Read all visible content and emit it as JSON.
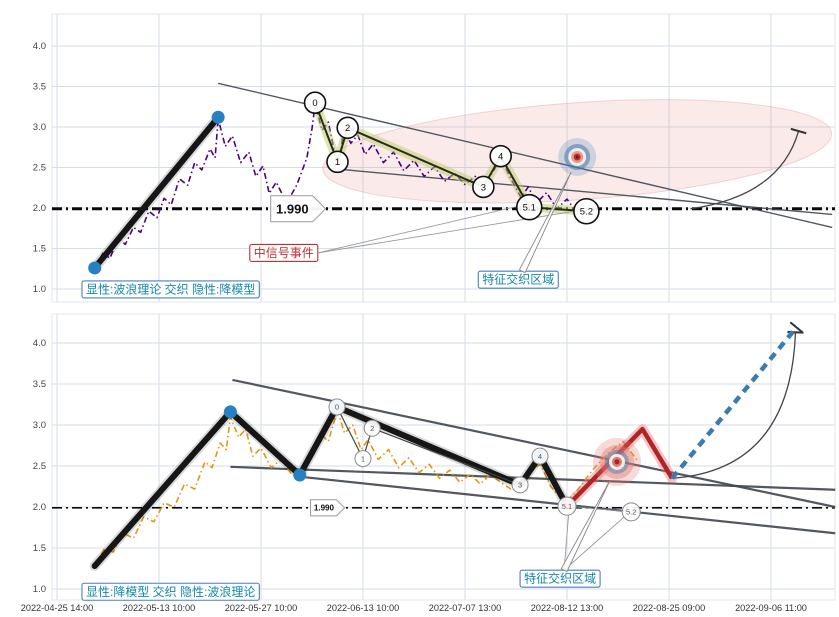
{
  "colors": {
    "grid": "#d6dee8",
    "frame": "#e2e7ee",
    "trend": "#41474e",
    "dot": "#2680c2",
    "band": "#b9cd67",
    "red": "#b02428",
    "red_glow": "rgba(224,112,112,0.4)",
    "projection": "#3a7cad",
    "ellipse_fill": "rgba(222,130,125,0.16)",
    "ellipse_stroke": "rgba(210,120,115,0.28)",
    "leader": "#999999",
    "caption_text": "#1587a8",
    "caption_border": "#4a7fc1",
    "red_label": "#c03030",
    "price_top": "#4b0082",
    "price_bottom": "#e69512"
  },
  "chart_data": {
    "type": "line",
    "x_tick_labels": [
      "2022-04-25 14:00",
      "2022-05-13 10:00",
      "2022-05-27 10:00",
      "2022-06-13 10:00",
      "2022-07-07 13:00",
      "2022-08-12 13:00",
      "2022-08-25 09:00",
      "2022-09-06 11:00"
    ],
    "y_tick_labels": [
      "1.0",
      "1.5",
      "2.0",
      "2.5",
      "3.0",
      "3.5",
      "4.0"
    ],
    "y_range": [
      0.85,
      4.45
    ],
    "grid": true,
    "threshold": {
      "value": 1.99,
      "label": "1.990"
    },
    "panels": [
      {
        "id": "wave-theory-panel",
        "caption": {
          "text": "显性:波浪理论 交织 隐性:降模型",
          "pos": [
            0.245,
            1.1
          ]
        },
        "price": {
          "color_key": "price_top",
          "points": [
            [
              0.37,
              1.26
            ],
            [
              0.45,
              1.44
            ],
            [
              0.52,
              1.38
            ],
            [
              0.6,
              1.63
            ],
            [
              0.67,
              1.55
            ],
            [
              0.75,
              1.76
            ],
            [
              0.82,
              1.7
            ],
            [
              0.9,
              1.96
            ],
            [
              0.98,
              1.88
            ],
            [
              1.05,
              2.12
            ],
            [
              1.12,
              2.04
            ],
            [
              1.2,
              2.36
            ],
            [
              1.28,
              2.28
            ],
            [
              1.35,
              2.56
            ],
            [
              1.42,
              2.47
            ],
            [
              1.5,
              2.73
            ],
            [
              1.55,
              2.62
            ],
            [
              1.58,
              3.1
            ],
            [
              1.65,
              2.76
            ],
            [
              1.72,
              2.89
            ],
            [
              1.8,
              2.56
            ],
            [
              1.88,
              2.69
            ],
            [
              1.95,
              2.39
            ],
            [
              2.02,
              2.52
            ],
            [
              2.08,
              2.18
            ],
            [
              2.15,
              2.32
            ],
            [
              2.25,
              2.06
            ],
            [
              2.35,
              2.28
            ],
            [
              2.45,
              2.62
            ],
            [
              2.5,
              2.98
            ],
            [
              2.53,
              3.28
            ],
            [
              2.6,
              2.96
            ],
            [
              2.66,
              3.06
            ],
            [
              2.72,
              2.7
            ],
            [
              2.77,
              2.58
            ],
            [
              2.81,
              2.97
            ],
            [
              2.88,
              2.8
            ],
            [
              2.95,
              2.9
            ],
            [
              3.02,
              2.66
            ],
            [
              3.1,
              2.79
            ],
            [
              3.2,
              2.56
            ],
            [
              3.3,
              2.69
            ],
            [
              3.4,
              2.46
            ],
            [
              3.5,
              2.59
            ],
            [
              3.6,
              2.39
            ],
            [
              3.7,
              2.51
            ],
            [
              3.8,
              2.33
            ],
            [
              3.9,
              2.43
            ],
            [
              4.0,
              2.29
            ],
            [
              4.1,
              2.39
            ],
            [
              4.18,
              2.27
            ],
            [
              4.28,
              2.46
            ],
            [
              4.35,
              2.62
            ],
            [
              4.45,
              2.36
            ],
            [
              4.55,
              2.13
            ],
            [
              4.62,
              2.26
            ],
            [
              4.7,
              2.06
            ],
            [
              4.8,
              2.19
            ],
            [
              4.9,
              1.99
            ],
            [
              5.0,
              2.11
            ],
            [
              5.08,
              1.97
            ],
            [
              5.17,
              1.95
            ]
          ]
        },
        "impulse": {
          "points": [
            [
              0.37,
              1.26
            ],
            [
              1.58,
              3.12
            ]
          ],
          "dots": [
            [
              0.37,
              1.26
            ],
            [
              1.58,
              3.12
            ]
          ]
        },
        "wave": {
          "markers": [
            {
              "label": "0",
              "p": [
                2.53,
                3.3
              ]
            },
            {
              "label": "1",
              "p": [
                2.75,
                2.57
              ]
            },
            {
              "label": "2",
              "p": [
                2.85,
                2.99
              ]
            },
            {
              "label": "3",
              "p": [
                4.18,
                2.26
              ]
            },
            {
              "label": "4",
              "p": [
                4.35,
                2.64
              ]
            },
            {
              "label": "5.1",
              "p": [
                4.63,
                2.01
              ]
            },
            {
              "label": "5.2",
              "p": [
                5.19,
                1.96
              ]
            }
          ],
          "paths": [
            {
              "labels": [
                "0",
                "1",
                "2",
                "3",
                "4",
                "5.1",
                "5.2"
              ],
              "w": 2,
              "color": "#2a2a18",
              "band": true
            }
          ]
        },
        "trendlines": [
          [
            [
              1.58,
              3.54
            ],
            [
              7.6,
              1.76
            ]
          ],
          [
            [
              2.67,
              2.49
            ],
            [
              7.6,
              1.92
            ]
          ]
        ],
        "ellipse": {
          "c": [
            5.1,
            2.7
          ],
          "rx": 2.5,
          "ry": 0.6,
          "rot": -4
        },
        "bullseye": {
          "p": [
            5.1,
            2.63
          ],
          "style": "blue"
        },
        "curve": {
          "from": [
            6.21,
            1.99
          ],
          "ctrl": [
            7.09,
            2.15
          ],
          "to": [
            7.27,
            2.95
          ]
        },
        "threshold_arrow": {
          "pos": [
            2.36
          ],
          "scale": 1
        },
        "annotations": [
          {
            "text": "中信号事件",
            "type": "red",
            "pos": [
              1.89,
              1.55
            ],
            "leaders": [
              [
                4.58,
                2.04
              ],
              [
                5.12,
                1.97
              ]
            ]
          },
          {
            "text": "特征交织区域",
            "type": "teal",
            "pos": [
              4.13,
              1.22
            ],
            "needle": [
              5.04,
              2.44
            ]
          }
        ]
      },
      {
        "id": "model-panel",
        "caption": {
          "text": "显性:降模型 交织 隐性:波浪理论",
          "pos": [
            0.245,
            1.07
          ]
        },
        "price": {
          "color_key": "price_bottom",
          "points": [
            [
              0.37,
              1.28
            ],
            [
              0.47,
              1.5
            ],
            [
              0.55,
              1.45
            ],
            [
              0.65,
              1.68
            ],
            [
              0.75,
              1.62
            ],
            [
              0.85,
              1.88
            ],
            [
              0.95,
              1.82
            ],
            [
              1.05,
              2.05
            ],
            [
              1.15,
              2.0
            ],
            [
              1.25,
              2.28
            ],
            [
              1.35,
              2.22
            ],
            [
              1.45,
              2.55
            ],
            [
              1.52,
              2.48
            ],
            [
              1.6,
              2.78
            ],
            [
              1.66,
              2.7
            ],
            [
              1.7,
              3.1
            ],
            [
              1.78,
              2.85
            ],
            [
              1.85,
              2.95
            ],
            [
              1.92,
              2.62
            ],
            [
              2.0,
              2.72
            ],
            [
              2.1,
              2.48
            ],
            [
              2.2,
              2.58
            ],
            [
              2.3,
              2.4
            ],
            [
              2.38,
              2.36
            ],
            [
              2.48,
              2.6
            ],
            [
              2.58,
              2.9
            ],
            [
              2.66,
              2.8
            ],
            [
              2.75,
              3.18
            ],
            [
              2.82,
              2.9
            ],
            [
              2.9,
              3.0
            ],
            [
              2.98,
              2.7
            ],
            [
              3.05,
              2.82
            ],
            [
              3.15,
              2.58
            ],
            [
              3.25,
              2.7
            ],
            [
              3.35,
              2.48
            ],
            [
              3.45,
              2.6
            ],
            [
              3.55,
              2.42
            ],
            [
              3.65,
              2.52
            ],
            [
              3.75,
              2.35
            ],
            [
              3.85,
              2.45
            ],
            [
              3.95,
              2.3
            ],
            [
              4.05,
              2.4
            ],
            [
              4.15,
              2.28
            ],
            [
              4.25,
              2.4
            ],
            [
              4.35,
              2.3
            ],
            [
              4.45,
              2.22
            ],
            [
              4.54,
              2.28
            ],
            [
              4.64,
              2.45
            ],
            [
              4.74,
              2.52
            ],
            [
              4.84,
              2.25
            ],
            [
              4.98,
              2.05
            ],
            [
              5.1,
              2.2
            ],
            [
              5.25,
              2.45
            ],
            [
              5.4,
              2.65
            ],
            [
              5.55,
              2.8
            ],
            [
              5.7,
              2.55
            ]
          ]
        },
        "impulse": {
          "points": [
            [
              0.37,
              1.28
            ],
            [
              1.7,
              3.16
            ],
            [
              2.38,
              2.39
            ],
            [
              2.745,
              3.22
            ],
            [
              4.54,
              2.27
            ],
            [
              4.735,
              2.62
            ],
            [
              5.0,
              2.01
            ]
          ],
          "dots": [
            [
              1.7,
              3.16
            ],
            [
              2.38,
              2.39
            ],
            [
              2.745,
              3.22
            ],
            [
              4.735,
              2.62
            ]
          ]
        },
        "wave": {
          "markers": [
            {
              "label": "0",
              "p": [
                2.745,
                3.22
              ]
            },
            {
              "label": "1",
              "p": [
                3.0,
                2.59
              ]
            },
            {
              "label": "2",
              "p": [
                3.09,
                2.96
              ]
            },
            {
              "label": "3",
              "p": [
                4.54,
                2.27
              ]
            },
            {
              "label": "4",
              "p": [
                4.735,
                2.62
              ]
            },
            {
              "label": "5.1",
              "p": [
                5.0,
                2.01
              ]
            },
            {
              "label": "5.2",
              "p": [
                5.63,
                1.94
              ]
            }
          ],
          "paths": [
            {
              "labels": [
                "0",
                "1",
                "2",
                "3"
              ],
              "w": 1.2,
              "color": "#444444",
              "band": false
            },
            {
              "labels": [
                "5.1",
                "5.2"
              ],
              "w": 1,
              "color": "#888888",
              "band": false
            }
          ]
        },
        "trendlines": [
          [
            [
              1.72,
              3.55
            ],
            [
              7.63,
              2.0
            ]
          ],
          [
            [
              1.7,
              2.49
            ],
            [
              7.63,
              2.21
            ]
          ],
          [
            [
              2.38,
              2.37
            ],
            [
              7.63,
              1.68
            ]
          ]
        ],
        "red_path": [
          [
            5.0,
            2.01
          ],
          [
            5.74,
            2.95
          ],
          [
            6.03,
            2.35
          ]
        ],
        "projection": {
          "points": [
            [
              6.03,
              2.35
            ],
            [
              7.25,
              4.19
            ]
          ]
        },
        "bullseye": {
          "p": [
            5.49,
            2.55
          ],
          "style": "pink"
        },
        "curve": {
          "from": [
            6.03,
            2.35
          ],
          "ctrl": [
            7.19,
            2.45
          ],
          "to": [
            7.24,
            4.13
          ]
        },
        "threshold_arrow": {
          "pos": [
            2.65
          ],
          "scale": 0.62
        },
        "annotations": [
          {
            "text": "特征交织区域",
            "type": "teal",
            "pos": [
              4.54,
              1.23
            ],
            "needle": [
              5.42,
              2.32
            ],
            "leaders": [
              [
                5.02,
                1.97
              ],
              [
                5.58,
                1.9
              ]
            ]
          }
        ]
      }
    ]
  }
}
